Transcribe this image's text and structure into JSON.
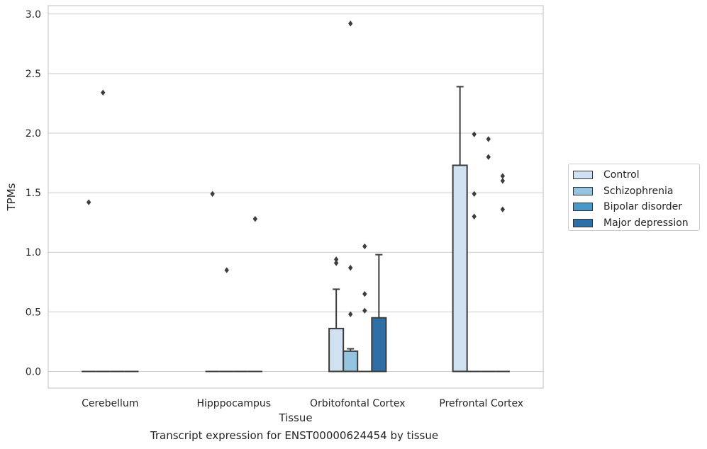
{
  "chart_data": {
    "type": "box",
    "title": "Transcript expression for ENST00000624454 by tissue",
    "xlabel": "Tissue",
    "ylabel": "TPMs",
    "ylim": [
      -0.14,
      3.07
    ],
    "yticks": [
      "0.0",
      "0.5",
      "1.0",
      "1.5",
      "2.0",
      "2.5",
      "3.0"
    ],
    "grid": true,
    "legend_position": "right",
    "categories": [
      "Cerebellum",
      "Hipppocampus",
      "Orbitofontal Cortex",
      "Prefrontal Cortex"
    ],
    "series": [
      {
        "name": "Control",
        "color": "#d0e1f2",
        "boxes": [
          {
            "q1": 0,
            "median": 0,
            "q3": 0,
            "whisker_low": 0,
            "whisker_high": 0,
            "outliers": [
              1.42
            ]
          },
          {
            "q1": 0,
            "median": 0,
            "q3": 0,
            "whisker_low": 0,
            "whisker_high": 0,
            "outliers": [
              1.49
            ]
          },
          {
            "q1": 0,
            "median": 0,
            "q3": 0.36,
            "whisker_low": 0,
            "whisker_high": 0.69,
            "outliers": [
              0.91,
              0.94
            ]
          },
          {
            "q1": 0,
            "median": 0,
            "q3": 1.73,
            "whisker_low": 0,
            "whisker_high": 2.39,
            "outliers": []
          }
        ]
      },
      {
        "name": "Schizophrenia",
        "color": "#94c4df",
        "boxes": [
          {
            "q1": 0,
            "median": 0,
            "q3": 0,
            "whisker_low": 0,
            "whisker_high": 0,
            "outliers": [
              2.34
            ]
          },
          {
            "q1": 0,
            "median": 0,
            "q3": 0,
            "whisker_low": 0,
            "whisker_high": 0,
            "outliers": [
              0.85
            ]
          },
          {
            "q1": 0,
            "median": 0,
            "q3": 0.17,
            "whisker_low": 0,
            "whisker_high": 0.19,
            "outliers": [
              0.48,
              0.87,
              2.92
            ]
          },
          {
            "q1": 0,
            "median": 0,
            "q3": 0,
            "whisker_low": 0,
            "whisker_high": 0,
            "outliers": [
              1.3,
              1.49,
              1.99
            ]
          }
        ]
      },
      {
        "name": "Bipolar disorder",
        "color": "#4a98c9",
        "boxes": [
          {
            "q1": 0,
            "median": 0,
            "q3": 0,
            "whisker_low": 0,
            "whisker_high": 0,
            "outliers": []
          },
          {
            "q1": 0,
            "median": 0,
            "q3": 0,
            "whisker_low": 0,
            "whisker_high": 0,
            "outliers": []
          },
          {
            "q1": 0,
            "median": 0,
            "q3": 0,
            "whisker_low": 0,
            "whisker_high": 0,
            "outliers": [
              0.51,
              0.65,
              1.05
            ]
          },
          {
            "q1": 0,
            "median": 0,
            "q3": 0,
            "whisker_low": 0,
            "whisker_high": 0,
            "outliers": [
              1.8,
              1.95
            ]
          }
        ]
      },
      {
        "name": "Major depression",
        "color": "#2e6fa7",
        "boxes": [
          {
            "q1": 0,
            "median": 0,
            "q3": 0,
            "whisker_low": 0,
            "whisker_high": 0,
            "outliers": []
          },
          {
            "q1": 0,
            "median": 0,
            "q3": 0,
            "whisker_low": 0,
            "whisker_high": 0,
            "outliers": [
              1.28
            ]
          },
          {
            "q1": 0,
            "median": 0,
            "q3": 0.45,
            "whisker_low": 0,
            "whisker_high": 0.98,
            "outliers": []
          },
          {
            "q1": 0,
            "median": 0,
            "q3": 0,
            "whisker_low": 0,
            "whisker_high": 0,
            "outliers": [
              1.36,
              1.6,
              1.64
            ]
          }
        ]
      }
    ]
  }
}
